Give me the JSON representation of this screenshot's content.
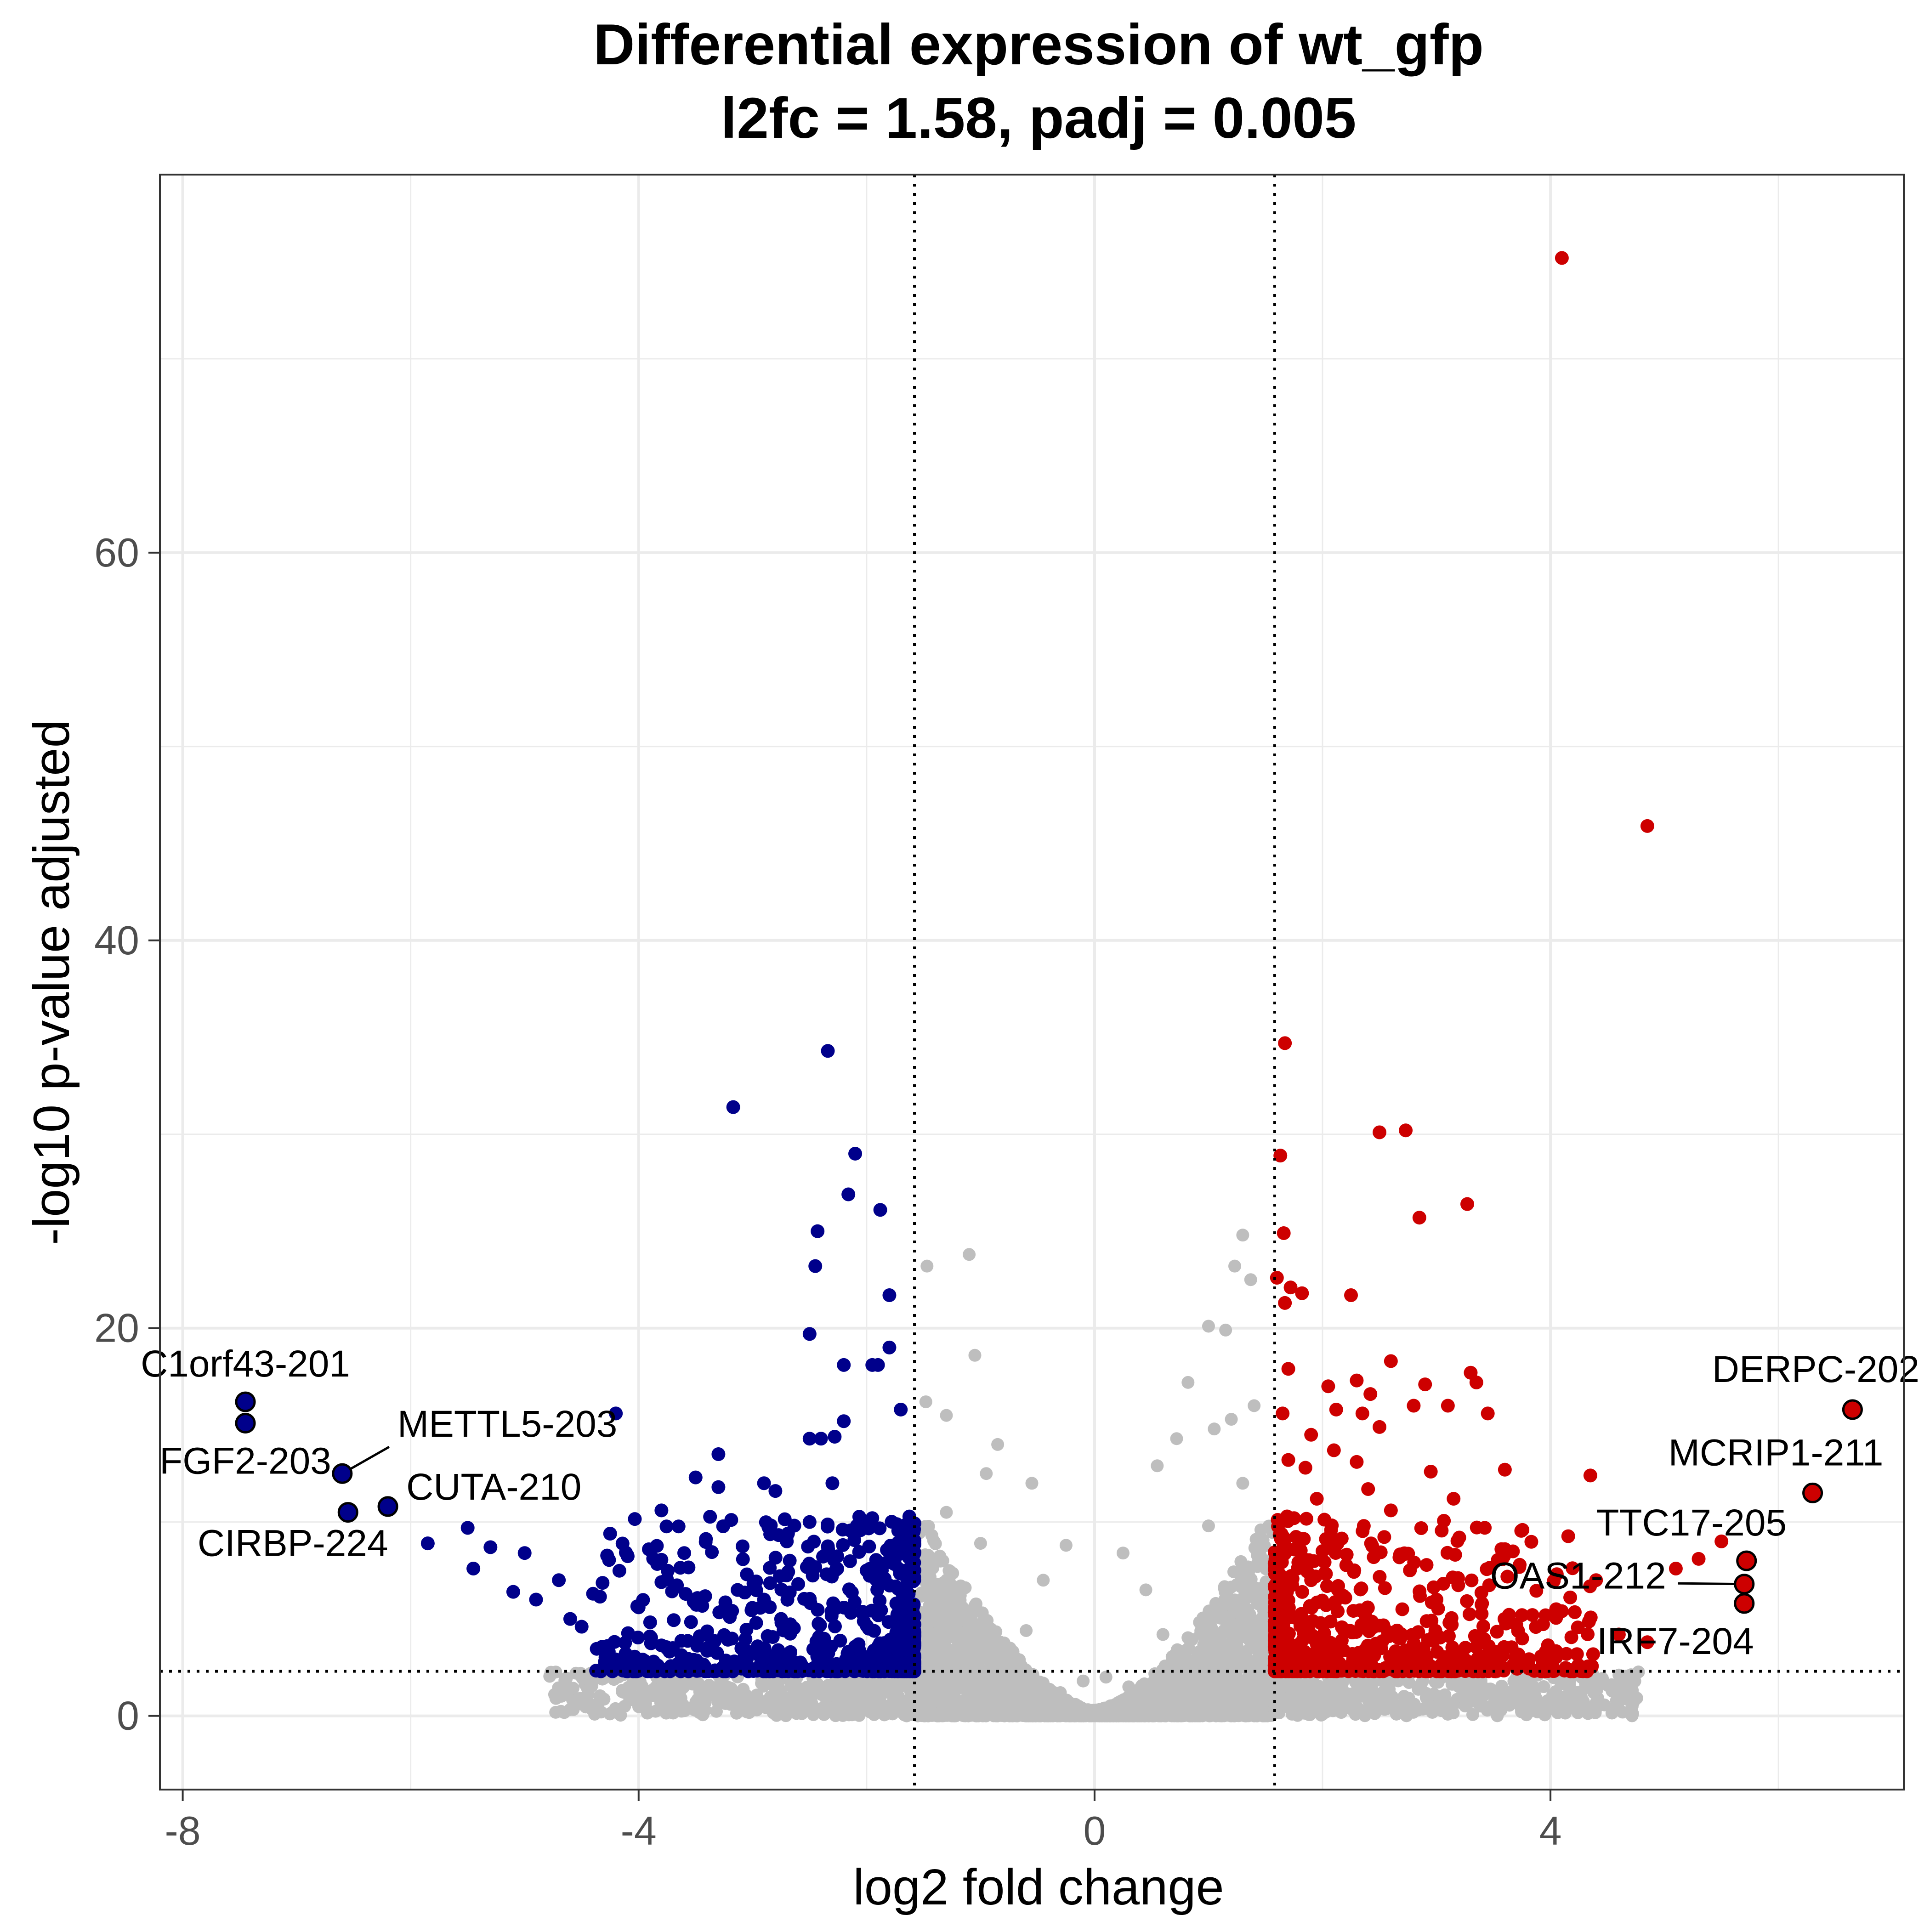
{
  "chart_data": {
    "type": "scatter",
    "title": "Differential expression of wt_gfp",
    "subtitle": "l2fc = 1.58, padj = 0.005",
    "xlabel": "log2 fold change",
    "ylabel": "-log10 p-value adjusted",
    "xlim": [
      -8.2,
      7.1
    ],
    "ylim": [
      -3.8,
      79.5
    ],
    "x_ticks": [
      -8,
      -4,
      0,
      4
    ],
    "y_ticks": [
      0,
      20,
      40,
      60
    ],
    "x_tick_labels": [
      "-8",
      "-4",
      "0",
      "4"
    ],
    "y_tick_labels": [
      "0",
      "20",
      "40",
      "60"
    ],
    "thresholds": {
      "l2fc": 1.58,
      "neg_log10_padj": 2.3
    },
    "grid": true,
    "legend": "none",
    "colors": {
      "down": "#00008B",
      "up": "#CD0000",
      "ns": "#BEBEBE",
      "threshold_line": "#000000",
      "highlight_outline": "#000000"
    },
    "series": [
      {
        "group": "up",
        "points": [
          [
            4.1,
            75.2
          ],
          [
            4.85,
            45.9
          ],
          [
            1.67,
            34.7
          ],
          [
            1.63,
            28.9
          ],
          [
            1.66,
            24.9
          ],
          [
            1.6,
            22.6
          ],
          [
            1.72,
            22.1
          ],
          [
            1.82,
            21.8
          ],
          [
            1.67,
            21.3
          ],
          [
            2.5,
            30.1
          ],
          [
            2.73,
            30.2
          ],
          [
            2.85,
            25.7
          ],
          [
            3.27,
            26.4
          ],
          [
            2.25,
            21.7
          ],
          [
            2.6,
            18.3
          ],
          [
            2.3,
            17.3
          ],
          [
            3.3,
            17.7
          ],
          [
            3.35,
            17.2
          ],
          [
            2.9,
            17.1
          ],
          [
            1.7,
            17.9
          ],
          [
            2.05,
            17.0
          ],
          [
            2.42,
            16.6
          ],
          [
            2.12,
            15.8
          ],
          [
            3.1,
            16.0
          ],
          [
            3.45,
            15.6
          ],
          [
            2.35,
            15.6
          ],
          [
            2.8,
            16.0
          ],
          [
            1.65,
            15.6
          ],
          [
            2.5,
            14.9
          ],
          [
            1.9,
            14.5
          ],
          [
            2.1,
            13.7
          ],
          [
            1.7,
            13.2
          ],
          [
            2.95,
            12.6
          ],
          [
            1.85,
            12.8
          ],
          [
            2.3,
            13.1
          ],
          [
            3.6,
            12.7
          ],
          [
            4.35,
            12.4
          ],
          [
            5.5,
            9.0
          ],
          [
            5.3,
            8.1
          ],
          [
            5.1,
            7.6
          ],
          [
            4.4,
            7.0
          ],
          [
            3.6,
            8.6
          ],
          [
            3.2,
            9.2
          ],
          [
            2.0,
            8.5
          ],
          [
            3.75,
            5.2
          ],
          [
            4.6,
            4.2
          ],
          [
            4.85,
            3.8
          ],
          [
            3.95,
            3.2
          ],
          [
            1.9,
            7.0
          ],
          [
            2.2,
            6.1
          ],
          [
            2.7,
            5.5
          ],
          [
            3.0,
            6.0
          ],
          [
            3.4,
            5.8
          ],
          [
            3.7,
            4.7
          ],
          [
            4.1,
            5.4
          ],
          [
            1.75,
            10.2
          ],
          [
            2.6,
            10.6
          ],
          [
            3.15,
            11.2
          ],
          [
            2.4,
            11.7
          ],
          [
            1.95,
            11.2
          ]
        ]
      },
      {
        "group": "down",
        "points": [
          [
            -2.34,
            34.3
          ],
          [
            -3.17,
            31.4
          ],
          [
            -2.1,
            29.0
          ],
          [
            -2.16,
            26.9
          ],
          [
            -1.88,
            26.1
          ],
          [
            -2.43,
            25.0
          ],
          [
            -2.45,
            23.2
          ],
          [
            -1.8,
            21.7
          ],
          [
            -2.5,
            19.7
          ],
          [
            -1.8,
            19.0
          ],
          [
            -2.2,
            18.1
          ],
          [
            -1.9,
            18.1
          ],
          [
            -1.95,
            18.1
          ],
          [
            -2.2,
            15.2
          ],
          [
            -1.7,
            15.8
          ],
          [
            -2.4,
            14.3
          ],
          [
            -3.3,
            13.5
          ],
          [
            -2.5,
            14.3
          ],
          [
            -2.28,
            14.4
          ],
          [
            -4.2,
            15.6
          ],
          [
            -3.5,
            12.3
          ],
          [
            -2.9,
            12.0
          ],
          [
            -3.3,
            11.8
          ],
          [
            -3.8,
            10.6
          ],
          [
            -4.25,
            9.4
          ],
          [
            -4.1,
            8.3
          ],
          [
            -3.6,
            8.4
          ],
          [
            -5.5,
            9.7
          ],
          [
            -5.0,
            8.4
          ],
          [
            -5.45,
            7.6
          ],
          [
            -4.7,
            7.0
          ],
          [
            -4.4,
            6.3
          ],
          [
            -3.8,
            6.9
          ],
          [
            -5.85,
            8.9
          ],
          [
            -5.3,
            8.7
          ],
          [
            -2.7,
            9.0
          ],
          [
            -2.8,
            11.6
          ],
          [
            -2.5,
            10.0
          ],
          [
            -2.9,
            6.0
          ],
          [
            -3.2,
            5.1
          ],
          [
            -4.0,
            5.6
          ],
          [
            -4.9,
            6.0
          ],
          [
            -4.5,
            4.6
          ],
          [
            -3.9,
            4.1
          ],
          [
            -3.4,
            3.5
          ],
          [
            -2.0,
            7.5
          ],
          [
            -2.3,
            12.0
          ],
          [
            -1.95,
            10.2
          ],
          [
            -2.6,
            6.8
          ],
          [
            -3.05,
            7.3
          ],
          [
            -4.6,
            5.0
          ],
          [
            -5.1,
            6.4
          ],
          [
            -3.7,
            3.5
          ],
          [
            -2.75,
            5.0
          ]
        ]
      },
      {
        "group": "ns",
        "points": [
          [
            1.3,
            24.8
          ],
          [
            1.23,
            23.2
          ],
          [
            1.37,
            22.5
          ],
          [
            -1.47,
            23.2
          ],
          [
            -1.1,
            23.8
          ],
          [
            -1.05,
            18.6
          ],
          [
            -1.48,
            16.2
          ],
          [
            -1.3,
            15.5
          ],
          [
            1.0,
            20.1
          ],
          [
            1.15,
            19.9
          ],
          [
            1.4,
            16.0
          ],
          [
            1.2,
            15.3
          ],
          [
            0.82,
            17.2
          ],
          [
            0.72,
            14.3
          ],
          [
            0.55,
            12.9
          ],
          [
            1.05,
            14.8
          ],
          [
            -0.85,
            14.0
          ],
          [
            -0.95,
            12.5
          ],
          [
            -0.55,
            12.0
          ],
          [
            -0.25,
            8.8
          ],
          [
            0.25,
            8.4
          ],
          [
            -0.45,
            7.0
          ],
          [
            0.45,
            6.5
          ],
          [
            0.1,
            2.0
          ],
          [
            -0.1,
            1.8
          ],
          [
            0.6,
            4.2
          ],
          [
            -0.6,
            4.4
          ],
          [
            1.0,
            9.8
          ],
          [
            -1.0,
            8.9
          ],
          [
            1.3,
            12.0
          ],
          [
            -1.3,
            10.5
          ],
          [
            0.3,
            1.5
          ],
          [
            -0.3,
            1.2
          ]
        ]
      }
    ],
    "highlighted": [
      {
        "label": "C1orf43-201",
        "x": -7.45,
        "y": 16.2,
        "group": "down"
      },
      {
        "label": "FGF2-203",
        "x": -7.45,
        "y": 15.1,
        "group": "down"
      },
      {
        "label": "METTL5-203",
        "x": -6.6,
        "y": 12.5,
        "group": "down"
      },
      {
        "label": "CUTA-210",
        "x": -6.2,
        "y": 10.8,
        "group": "down"
      },
      {
        "label": "CIRBP-224",
        "x": -6.55,
        "y": 10.5,
        "group": "down"
      },
      {
        "label": "DERPC-202",
        "x": 6.65,
        "y": 15.8,
        "group": "up"
      },
      {
        "label": "MCRIP1-211",
        "x": 6.3,
        "y": 11.5,
        "group": "up"
      },
      {
        "label": "TTC17-205",
        "x": 5.72,
        "y": 8.0,
        "group": "up"
      },
      {
        "label": "OAS1-212",
        "x": 5.7,
        "y": 6.8,
        "group": "up"
      },
      {
        "label": "IRF7-204",
        "x": 5.7,
        "y": 5.8,
        "group": "up"
      }
    ]
  }
}
